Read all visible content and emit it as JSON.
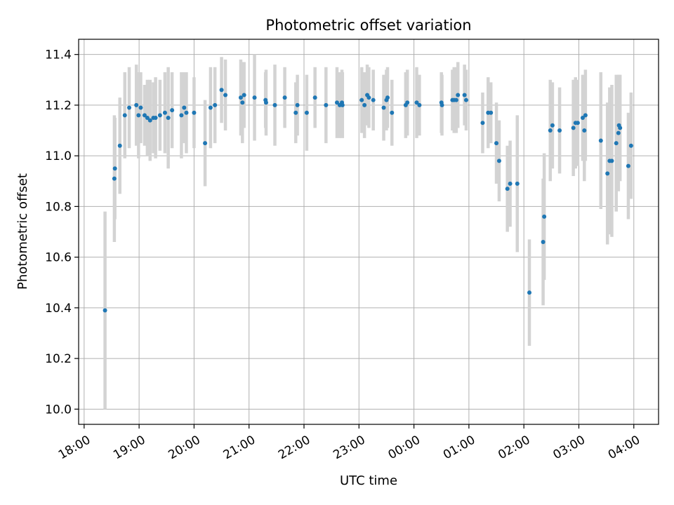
{
  "chart_data": {
    "type": "scatter",
    "title": "Photometric offset variation",
    "xlabel": "UTC time",
    "ylabel": "Photometric offset",
    "x_unit": "hours since 18:00 UTC",
    "xlim": [
      -0.1,
      10.45
    ],
    "ylim": [
      9.94,
      11.46
    ],
    "grid": true,
    "colors": {
      "points": "#1f77b4",
      "errorbars": "#d3d3d3",
      "grid": "#b0b0b0"
    },
    "xticks": [
      {
        "value": 0,
        "label": "18:00"
      },
      {
        "value": 1,
        "label": "19:00"
      },
      {
        "value": 2,
        "label": "20:00"
      },
      {
        "value": 3,
        "label": "21:00"
      },
      {
        "value": 4,
        "label": "22:00"
      },
      {
        "value": 5,
        "label": "23:00"
      },
      {
        "value": 6,
        "label": "00:00"
      },
      {
        "value": 7,
        "label": "01:00"
      },
      {
        "value": 8,
        "label": "02:00"
      },
      {
        "value": 9,
        "label": "03:00"
      },
      {
        "value": 10,
        "label": "04:00"
      }
    ],
    "yticks": [
      {
        "value": 10.0,
        "label": "10.0"
      },
      {
        "value": 10.2,
        "label": "10.2"
      },
      {
        "value": 10.4,
        "label": "10.4"
      },
      {
        "value": 10.6,
        "label": "10.6"
      },
      {
        "value": 10.8,
        "label": "10.8"
      },
      {
        "value": 11.0,
        "label": "11.0"
      },
      {
        "value": 11.2,
        "label": "11.2"
      },
      {
        "value": 11.4,
        "label": "11.4"
      }
    ],
    "series": [
      {
        "name": "offset",
        "points": [
          [
            0.38,
            10.39,
            0.39
          ],
          [
            0.55,
            10.91,
            0.25
          ],
          [
            0.56,
            10.95,
            0.2
          ],
          [
            0.65,
            11.04,
            0.19
          ],
          [
            0.74,
            11.16,
            0.17
          ],
          [
            0.82,
            11.19,
            0.16
          ],
          [
            0.95,
            11.2,
            0.16
          ],
          [
            0.99,
            11.16,
            0.17
          ],
          [
            1.03,
            11.19,
            0.14
          ],
          [
            1.1,
            11.16,
            0.12
          ],
          [
            1.15,
            11.15,
            0.15
          ],
          [
            1.2,
            11.14,
            0.16
          ],
          [
            1.26,
            11.15,
            0.14
          ],
          [
            1.3,
            11.15,
            0.16
          ],
          [
            1.38,
            11.16,
            0.14
          ],
          [
            1.47,
            11.17,
            0.16
          ],
          [
            1.53,
            11.15,
            0.2
          ],
          [
            1.6,
            11.18,
            0.15
          ],
          [
            1.77,
            11.16,
            0.17
          ],
          [
            1.82,
            11.19,
            0.14
          ],
          [
            1.86,
            11.17,
            0.16
          ],
          [
            2.0,
            11.17,
            0.14
          ],
          [
            2.2,
            11.05,
            0.17
          ],
          [
            2.3,
            11.19,
            0.16
          ],
          [
            2.38,
            11.2,
            0.15
          ],
          [
            2.5,
            11.26,
            0.13
          ],
          [
            2.57,
            11.24,
            0.14
          ],
          [
            2.85,
            11.23,
            0.15
          ],
          [
            2.88,
            11.21,
            0.16
          ],
          [
            2.91,
            11.24,
            0.13
          ],
          [
            3.1,
            11.23,
            0.17
          ],
          [
            3.3,
            11.22,
            0.11
          ],
          [
            3.31,
            11.21,
            0.13
          ],
          [
            3.47,
            11.2,
            0.16
          ],
          [
            3.65,
            11.23,
            0.12
          ],
          [
            3.85,
            11.17,
            0.12
          ],
          [
            3.88,
            11.2,
            0.12
          ],
          [
            4.05,
            11.17,
            0.15
          ],
          [
            4.2,
            11.23,
            0.12
          ],
          [
            4.4,
            11.2,
            0.15
          ],
          [
            4.6,
            11.21,
            0.14
          ],
          [
            4.65,
            11.2,
            0.13
          ],
          [
            4.69,
            11.21,
            0.13
          ],
          [
            4.7,
            11.2,
            0.13
          ],
          [
            5.05,
            11.22,
            0.13
          ],
          [
            5.1,
            11.2,
            0.13
          ],
          [
            5.15,
            11.24,
            0.12
          ],
          [
            5.18,
            11.23,
            0.12
          ],
          [
            5.26,
            11.22,
            0.12
          ],
          [
            5.45,
            11.19,
            0.13
          ],
          [
            5.5,
            11.22,
            0.12
          ],
          [
            5.52,
            11.23,
            0.12
          ],
          [
            5.6,
            11.17,
            0.13
          ],
          [
            5.85,
            11.2,
            0.13
          ],
          [
            5.88,
            11.21,
            0.13
          ],
          [
            6.05,
            11.21,
            0.14
          ],
          [
            6.1,
            11.2,
            0.12
          ],
          [
            6.5,
            11.21,
            0.12
          ],
          [
            6.51,
            11.2,
            0.12
          ],
          [
            6.7,
            11.22,
            0.12
          ],
          [
            6.73,
            11.22,
            0.13
          ],
          [
            6.77,
            11.22,
            0.13
          ],
          [
            6.8,
            11.24,
            0.13
          ],
          [
            6.92,
            11.24,
            0.12
          ],
          [
            6.95,
            11.22,
            0.12
          ],
          [
            7.25,
            11.13,
            0.12
          ],
          [
            7.35,
            11.17,
            0.14
          ],
          [
            7.4,
            11.17,
            0.12
          ],
          [
            7.5,
            11.05,
            0.16
          ],
          [
            7.55,
            10.98,
            0.16
          ],
          [
            7.7,
            10.87,
            0.17
          ],
          [
            7.75,
            10.89,
            0.17
          ],
          [
            7.88,
            10.89,
            0.27
          ],
          [
            8.1,
            10.46,
            0.21
          ],
          [
            8.35,
            10.66,
            0.25
          ],
          [
            8.37,
            10.76,
            0.25
          ],
          [
            8.48,
            11.1,
            0.2
          ],
          [
            8.52,
            11.12,
            0.17
          ],
          [
            8.65,
            11.1,
            0.17
          ],
          [
            8.9,
            11.11,
            0.19
          ],
          [
            8.94,
            11.13,
            0.18
          ],
          [
            8.98,
            11.13,
            0.17
          ],
          [
            9.07,
            11.15,
            0.17
          ],
          [
            9.1,
            11.1,
            0.2
          ],
          [
            9.12,
            11.16,
            0.18
          ],
          [
            9.4,
            11.06,
            0.27
          ],
          [
            9.52,
            10.93,
            0.28
          ],
          [
            9.56,
            10.98,
            0.29
          ],
          [
            9.6,
            10.98,
            0.3
          ],
          [
            9.68,
            11.05,
            0.27
          ],
          [
            9.72,
            11.09,
            0.23
          ],
          [
            9.73,
            11.12,
            0.2
          ],
          [
            9.75,
            11.11,
            0.21
          ],
          [
            9.9,
            10.96,
            0.21
          ],
          [
            9.95,
            11.04,
            0.21
          ]
        ]
      }
    ]
  }
}
